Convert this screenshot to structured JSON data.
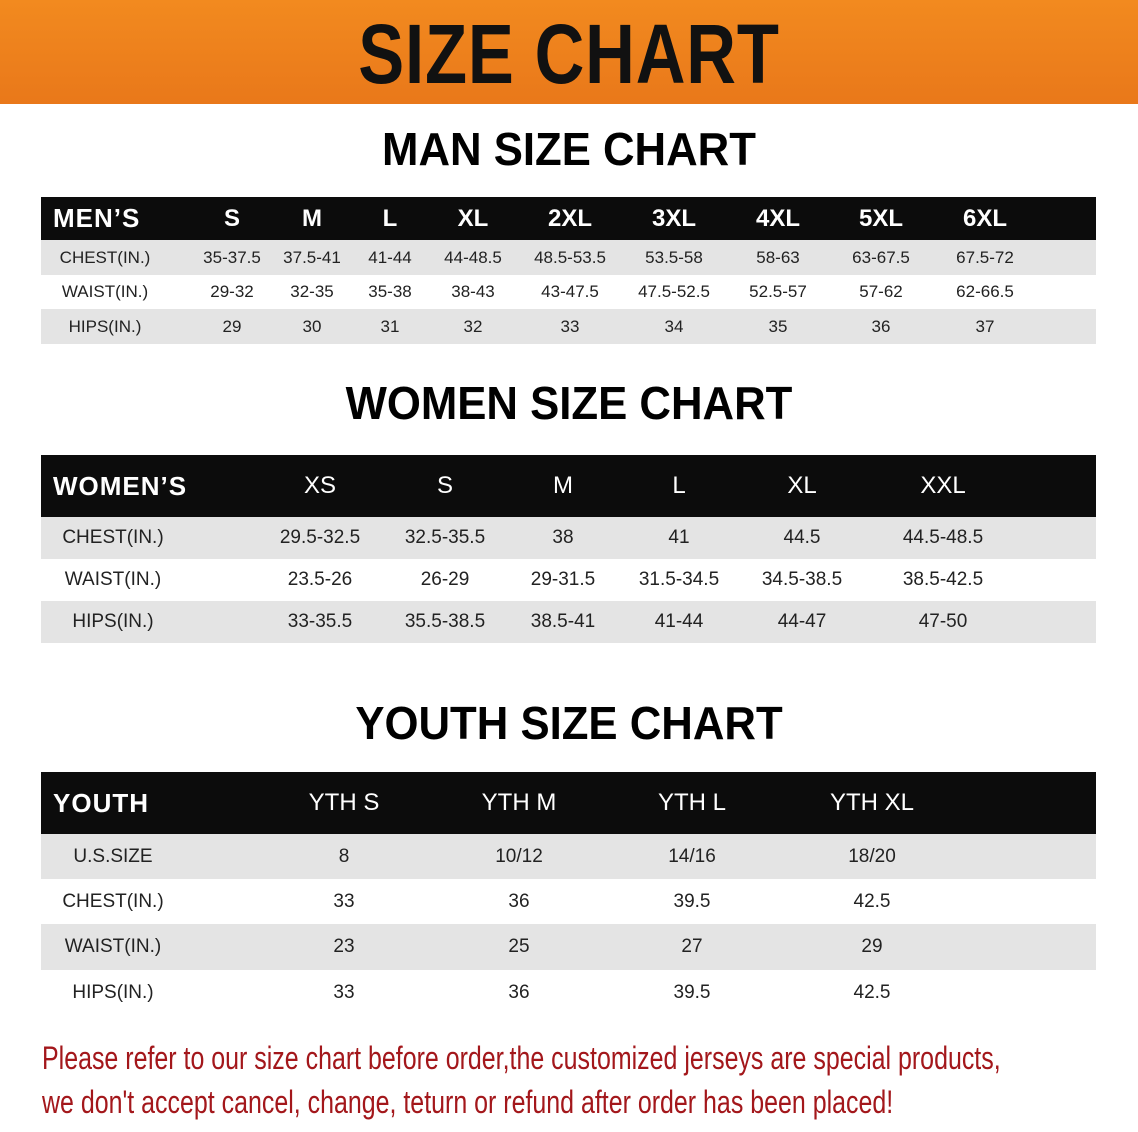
{
  "banner_title": "SIZE CHART",
  "men": {
    "title": "MAN SIZE CHART",
    "header": [
      "MEN’S",
      "S",
      "M",
      "L",
      "XL",
      "2XL",
      "3XL",
      "4XL",
      "5XL",
      "6XL"
    ],
    "rows": [
      [
        "CHEST(IN.)",
        "35-37.5",
        "37.5-41",
        "41-44",
        "44-48.5",
        "48.5-53.5",
        "53.5-58",
        "58-63",
        "63-67.5",
        "67.5-72"
      ],
      [
        "WAIST(IN.)",
        "29-32",
        "32-35",
        "35-38",
        "38-43",
        "43-47.5",
        "47.5-52.5",
        "52.5-57",
        "57-62",
        "62-66.5"
      ],
      [
        "HIPS(IN.)",
        "29",
        "30",
        "31",
        "32",
        "33",
        "34",
        "35",
        "36",
        "37"
      ]
    ]
  },
  "women": {
    "title": "WOMEN SIZE CHART",
    "header": [
      "WOMEN’S",
      "XS",
      "S",
      "M",
      "L",
      "XL",
      "XXL"
    ],
    "rows": [
      [
        "CHEST(IN.)",
        "29.5-32.5",
        "32.5-35.5",
        "38",
        "41",
        "44.5",
        "44.5-48.5"
      ],
      [
        "WAIST(IN.)",
        "23.5-26",
        "26-29",
        "29-31.5",
        "31.5-34.5",
        "34.5-38.5",
        "38.5-42.5"
      ],
      [
        "HIPS(IN.)",
        "33-35.5",
        "35.5-38.5",
        "38.5-41",
        "41-44",
        "44-47",
        "47-50"
      ]
    ]
  },
  "youth": {
    "title": "YOUTH SIZE CHART",
    "header": [
      "YOUTH",
      "YTH S",
      "YTH M",
      "YTH L",
      "YTH XL"
    ],
    "rows": [
      [
        "U.S.SIZE",
        "8",
        "10/12",
        "14/16",
        "18/20"
      ],
      [
        "CHEST(IN.)",
        "33",
        "36",
        "39.5",
        "42.5"
      ],
      [
        "WAIST(IN.)",
        "23",
        "25",
        "27",
        "29"
      ],
      [
        "HIPS(IN.)",
        "33",
        "36",
        "39.5",
        "42.5"
      ]
    ]
  },
  "note": {
    "line1": "Please refer to our size chart before order,the customized jerseys are special products,",
    "line2": "we don't accept cancel, change, teturn or refund after order has been placed!"
  },
  "colors": {
    "banner": "#ee821c",
    "header_row": "#0c0c0c",
    "stripe": "#e4e4e4",
    "note": "#a3171b"
  }
}
